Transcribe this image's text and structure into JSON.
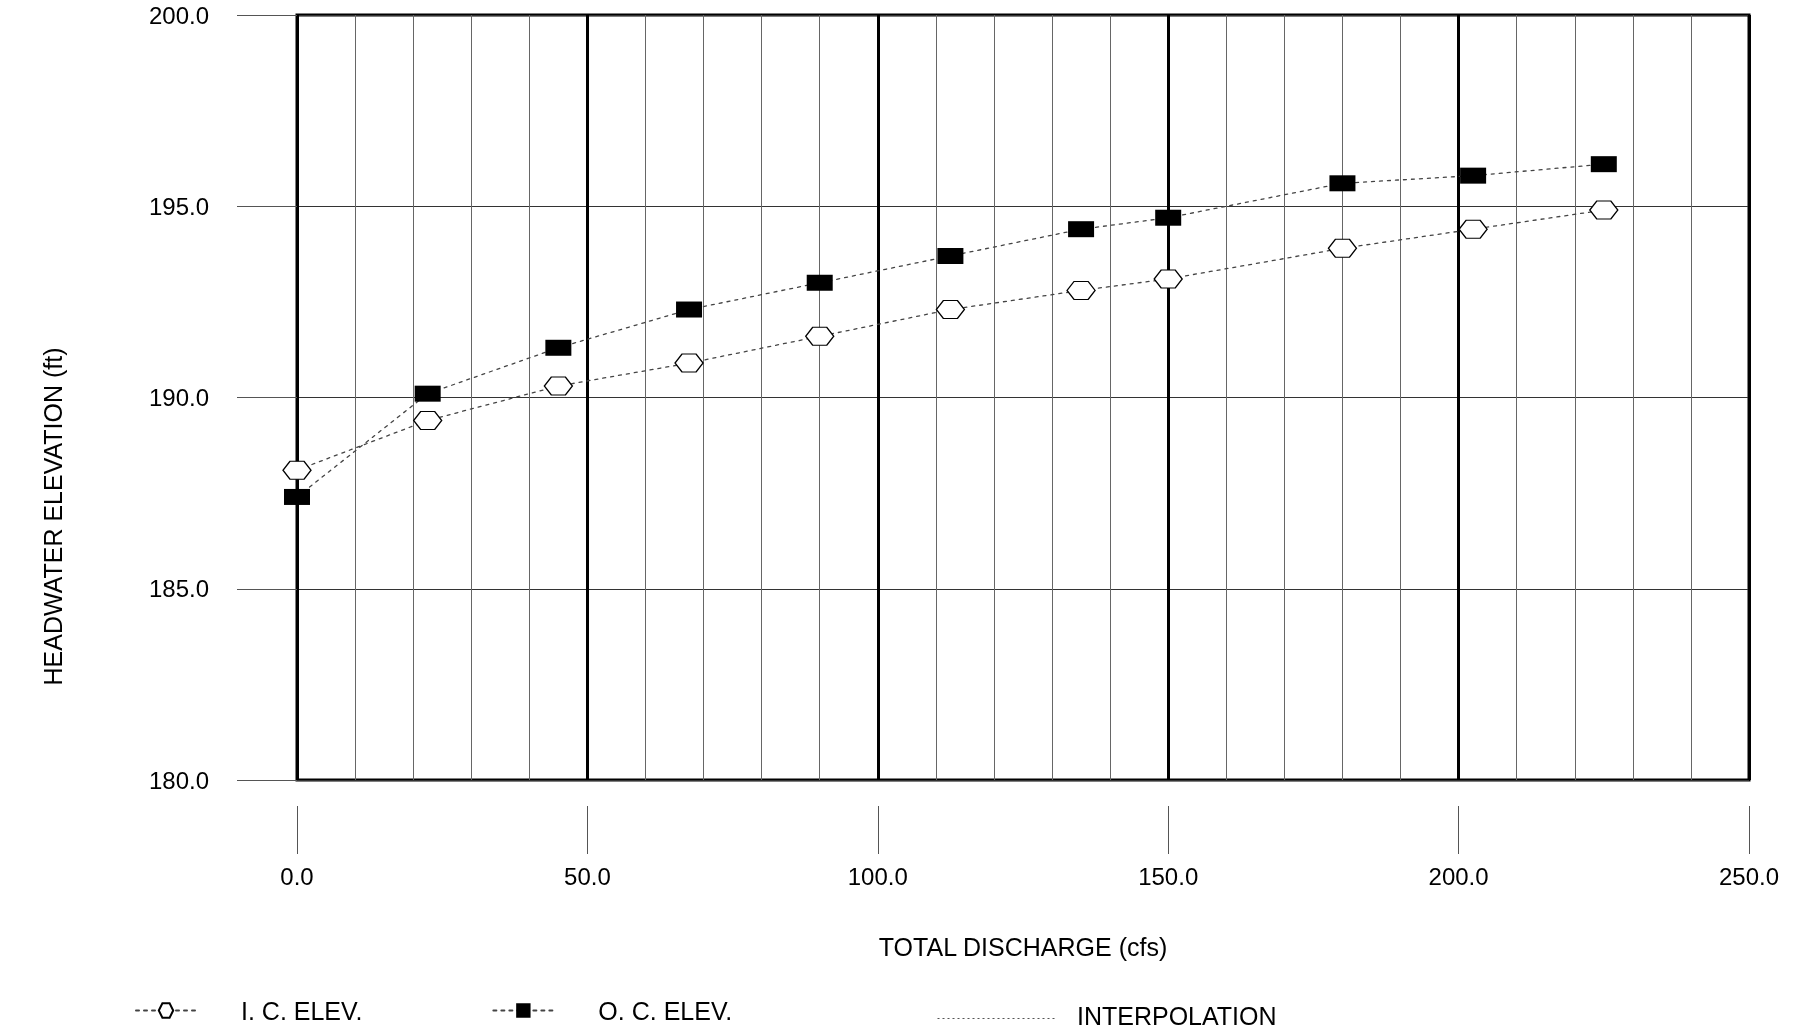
{
  "chart_data": {
    "type": "line",
    "xlabel": "TOTAL DISCHARGE (cfs)",
    "ylabel": "HEADWATER ELEVATION (ft)",
    "x": [
      0,
      22.5,
      45,
      67.5,
      90,
      112.5,
      135,
      150,
      180,
      202.5,
      225
    ],
    "series": [
      {
        "name": "I. C. ELEV.",
        "color": "#000000",
        "marker": "diamond",
        "line_style": "dotted",
        "values": [
          188.1,
          189.4,
          190.3,
          190.9,
          191.6,
          192.3,
          192.8,
          193.1,
          193.9,
          194.4,
          194.9
        ]
      },
      {
        "name": "O. C. ELEV.",
        "color": "#000000",
        "marker": "square",
        "line_style": "dotted",
        "values": [
          187.4,
          190.1,
          191.3,
          192.3,
          193.0,
          193.7,
          194.4,
          194.7,
          195.6,
          195.8,
          196.1
        ]
      }
    ],
    "xlim": [
      0,
      250
    ],
    "xticks": [
      {
        "value": 0,
        "label": "0.0"
      },
      {
        "value": 50,
        "label": "50.0"
      },
      {
        "value": 100,
        "label": "100.0"
      },
      {
        "value": 150,
        "label": "150.0"
      },
      {
        "value": 200,
        "label": "200.0"
      },
      {
        "value": 250,
        "label": "250.0"
      }
    ],
    "ylim": [
      180,
      200
    ],
    "yticks": [
      {
        "value": 180,
        "label": "180.0"
      },
      {
        "value": 185,
        "label": "185.0"
      },
      {
        "value": 190,
        "label": "190.0"
      },
      {
        "value": 195,
        "label": "195.0"
      },
      {
        "value": 200,
        "label": "200.0"
      }
    ],
    "grid": true,
    "legend": "bottom",
    "annotations": [
      "INTERPOLATION"
    ]
  }
}
